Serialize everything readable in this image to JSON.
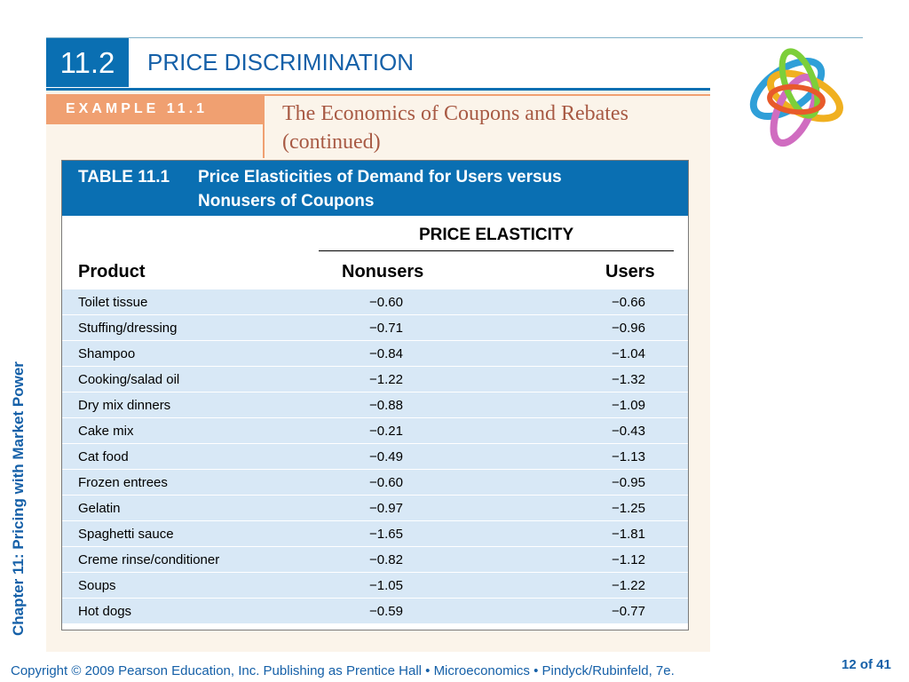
{
  "section": {
    "number": "11.2",
    "title": "PRICE DISCRIMINATION"
  },
  "example": {
    "label": "EXAMPLE 11.1",
    "title": "The Economics of Coupons and Rebates (continued)"
  },
  "table": {
    "caption_label": "TABLE 11.1",
    "caption_line1": "Price Elasticities of Demand for Users versus",
    "caption_line2": "Nonusers of Coupons",
    "group_header": "PRICE ELASTICITY",
    "columns": [
      "Product",
      "Nonusers",
      "Users"
    ],
    "rows": [
      [
        "Toilet tissue",
        "−0.60",
        "−0.66"
      ],
      [
        "Stuffing/dressing",
        "−0.71",
        "−0.96"
      ],
      [
        "Shampoo",
        "−0.84",
        "−1.04"
      ],
      [
        "Cooking/salad oil",
        "−1.22",
        "−1.32"
      ],
      [
        "Dry mix dinners",
        "−0.88",
        "−1.09"
      ],
      [
        "Cake mix",
        "−0.21",
        "−0.43"
      ],
      [
        "Cat food",
        "−0.49",
        "−1.13"
      ],
      [
        "Frozen entrees",
        "−0.60",
        "−0.95"
      ],
      [
        "Gelatin",
        "−0.97",
        "−1.25"
      ],
      [
        "Spaghetti sauce",
        "−1.65",
        "−1.81"
      ],
      [
        "Creme rinse/conditioner",
        "−0.82",
        "−1.12"
      ],
      [
        "Soups",
        "−1.05",
        "−1.22"
      ],
      [
        "Hot dogs",
        "−0.59",
        "−0.77"
      ]
    ]
  },
  "sidebar_text": "Chapter 11: Pricing with Market Power",
  "footer": "Copyright © 2009 Pearson Education, Inc. Publishing as Prentice Hall  •  Microeconomics  •  Pindyck/Rubinfeld, 7e.",
  "page_number": "12 of 41",
  "logo_icon": "interlocking-rings-logo",
  "colors": {
    "accent_blue": "#0a6fb2",
    "example_orange": "#f0a071",
    "row_fill": "#d8e8f6",
    "title_brown": "#a85a44"
  }
}
